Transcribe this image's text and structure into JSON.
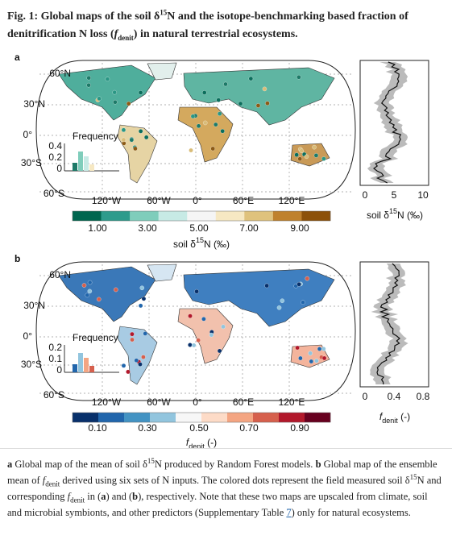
{
  "caption_title": [
    "Fig. 1: Global maps of the soil δ",
    "15",
    "N and the isotope-benchmarking based fraction of denitrification N loss (",
    "f",
    "denit",
    ") in natural terrestrial ecosystems."
  ],
  "panels": [
    {
      "label": "a",
      "lat_labels": [
        "60°N",
        "30°N",
        "0°",
        "30°S",
        "60°S"
      ],
      "lon_labels": [
        "120°W",
        "60°W",
        "0°",
        "60°E",
        "120°E"
      ],
      "inset": {
        "title": "Frequency",
        "ticks": [
          "0.4",
          "0.2",
          "0"
        ]
      },
      "profile_ticks": [
        "0",
        "5",
        "10"
      ],
      "profile_axis_label": [
        "soil δ",
        "15",
        "N (‰)"
      ],
      "colorbar_labels": [
        "1.00",
        "3.00",
        "5.00",
        "7.00",
        "9.00"
      ],
      "colorbar_title": [
        "soil δ",
        "15",
        "N (‰)"
      ]
    },
    {
      "label": "b",
      "lat_labels": [
        "60°N",
        "30°N",
        "0°",
        "30°S",
        "60°S"
      ],
      "lon_labels": [
        "120°W",
        "60°W",
        "0°",
        "60°E",
        "120°E"
      ],
      "inset": {
        "title": "Frequency",
        "ticks": [
          "0.2",
          "0.1",
          "0"
        ]
      },
      "profile_ticks": [
        "0",
        "0.4",
        "0.8"
      ],
      "profile_axis_label": [
        "f",
        "denit",
        " (-)"
      ],
      "colorbar_labels": [
        "0.10",
        "0.30",
        "0.50",
        "0.70",
        "0.90"
      ],
      "colorbar_title": [
        "f",
        "denit",
        " (-)"
      ]
    }
  ],
  "caption": [
    "a",
    " Global map of the mean of soil δ",
    "15",
    "N produced by Random Forest models. ",
    "b",
    " Global map of the ensemble mean of ",
    "f",
    "denit",
    " derived using six sets of N inputs. The colored dots represent the field measured soil δ",
    "15",
    "N and corresponding ",
    "f",
    "denit",
    " in (",
    "a",
    ") and (",
    "b",
    "), respectively. Note that these two maps are upscaled from climate, soil and microbial symbionts, and other predictors (Supplementary Table ",
    "7",
    ") only for natural ecosystems."
  ]
}
